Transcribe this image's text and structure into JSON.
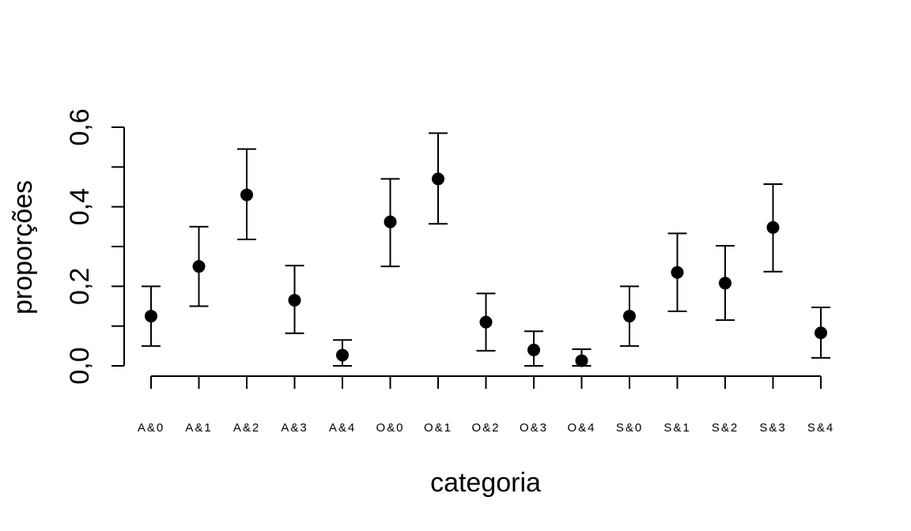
{
  "chart_data": {
    "type": "scatter",
    "title": "",
    "xlabel": "categoria",
    "ylabel": "proporções",
    "categories": [
      "A&0",
      "A&1",
      "A&2",
      "A&3",
      "A&4",
      "O&0",
      "O&1",
      "O&2",
      "O&3",
      "O&4",
      "S&0",
      "S&1",
      "S&2",
      "S&3",
      "S&4"
    ],
    "values": [
      0.125,
      0.25,
      0.43,
      0.165,
      0.027,
      0.362,
      0.47,
      0.11,
      0.04,
      0.013,
      0.125,
      0.235,
      0.208,
      0.348,
      0.083
    ],
    "lower": [
      0.05,
      0.15,
      0.318,
      0.082,
      0.0,
      0.25,
      0.357,
      0.038,
      0.0,
      0.0,
      0.05,
      0.137,
      0.115,
      0.237,
      0.02
    ],
    "upper": [
      0.2,
      0.35,
      0.545,
      0.252,
      0.065,
      0.47,
      0.585,
      0.182,
      0.087,
      0.042,
      0.2,
      0.333,
      0.302,
      0.457,
      0.147
    ],
    "ylim": [
      0,
      0.6
    ],
    "yticks": [
      0.0,
      0.2,
      0.4,
      0.6
    ],
    "ytick_labels": [
      "0,0",
      "0,2",
      "0,4",
      "0,6"
    ],
    "grid": false,
    "error_bars": true
  }
}
